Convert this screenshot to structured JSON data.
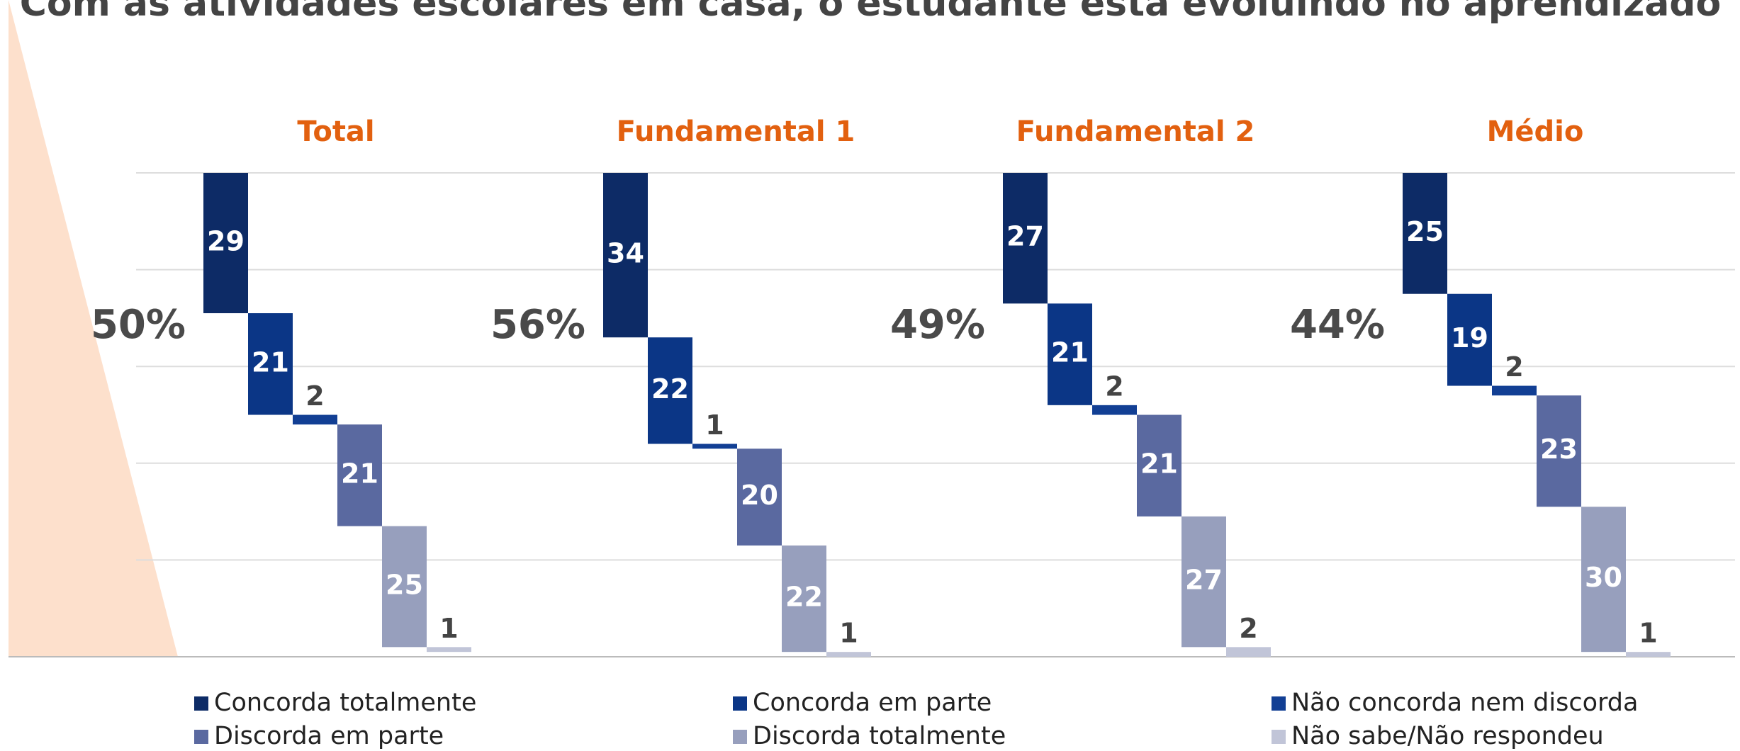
{
  "chart_data": {
    "type": "waterfall",
    "title": "Com as atividades escolares em casa, o estudante está evoluindo no aprendizado",
    "groups": [
      "Total",
      "Fundamental 1",
      "Fundamental 2",
      "Médio"
    ],
    "group_labels": [
      "50%",
      "56%",
      "49%",
      "44%"
    ],
    "series": [
      {
        "name": "Concorda totalmente",
        "color": "#0d2b66",
        "values": [
          29,
          34,
          27,
          25
        ]
      },
      {
        "name": "Concorda em parte",
        "color": "#0b3686",
        "values": [
          21,
          22,
          21,
          19
        ]
      },
      {
        "name": "Não concorda nem discorda",
        "color": "#123f94",
        "values": [
          2,
          1,
          2,
          2
        ]
      },
      {
        "name": "Discorda em parte",
        "color": "#5a69a0",
        "values": [
          21,
          20,
          21,
          23
        ]
      },
      {
        "name": "Discorda totalmente",
        "color": "#979fbd",
        "values": [
          25,
          22,
          27,
          30
        ]
      },
      {
        "name": "Não sabe/Não respondeu",
        "color": "#c1c5d8",
        "values": [
          1,
          1,
          2,
          1
        ]
      }
    ],
    "ylim": [
      0,
      100
    ],
    "yticks": [
      0,
      20,
      40,
      60,
      80,
      100
    ],
    "grid": true
  }
}
